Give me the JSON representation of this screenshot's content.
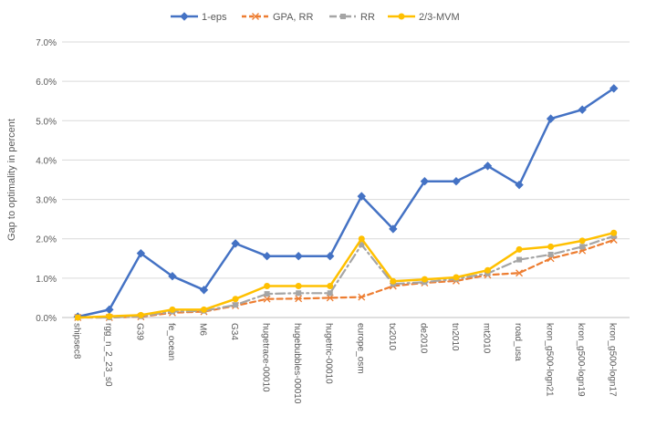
{
  "chart_data": {
    "type": "line",
    "title": "",
    "xlabel": "",
    "ylabel": "Gap to optimality in percent",
    "ylim": [
      0,
      7
    ],
    "yticks": [
      "0.0%",
      "1.0%",
      "2.0%",
      "3.0%",
      "4.0%",
      "5.0%",
      "6.0%",
      "7.0%"
    ],
    "grid": true,
    "legend_position": "top",
    "categories": [
      "shipsec8",
      "rgg_n_2_23_s0",
      "G39",
      "fe_ocean",
      "M6",
      "G34",
      "hugetrace-00010",
      "hugebubbles-00010",
      "hugetric-00010",
      "europe_osm",
      "tx2010",
      "de2010",
      "tn2010",
      "mt2010",
      "road_usa",
      "kron_g500-logn21",
      "kron_g500-logn19",
      "kron_g500-logn17"
    ],
    "series": [
      {
        "name": "1-eps",
        "color": "#4472C4",
        "marker": "diamond",
        "dash": "solid",
        "values": [
          0.02,
          0.2,
          1.63,
          1.05,
          0.7,
          1.88,
          1.56,
          1.56,
          1.56,
          3.08,
          2.25,
          3.46,
          3.46,
          3.85,
          3.37,
          5.05,
          5.28,
          5.82
        ]
      },
      {
        "name": "GPA, RR",
        "color": "#ED7D31",
        "marker": "x",
        "dash": "dash",
        "values": [
          0.0,
          0.0,
          0.02,
          0.12,
          0.15,
          0.3,
          0.47,
          0.48,
          0.5,
          0.52,
          0.8,
          0.88,
          0.93,
          1.08,
          1.13,
          1.5,
          1.7,
          1.97
        ]
      },
      {
        "name": "RR",
        "color": "#A5A5A5",
        "marker": "square",
        "dash": "dashdot",
        "values": [
          0.0,
          0.0,
          0.03,
          0.15,
          0.17,
          0.32,
          0.6,
          0.62,
          0.62,
          1.85,
          0.85,
          0.9,
          0.98,
          1.12,
          1.47,
          1.6,
          1.8,
          2.07
        ]
      },
      {
        "name": "2/3-MVM",
        "color": "#FFC000",
        "marker": "circle",
        "dash": "solid",
        "values": [
          0.0,
          0.03,
          0.06,
          0.2,
          0.2,
          0.47,
          0.8,
          0.8,
          0.8,
          2.0,
          0.92,
          0.97,
          1.02,
          1.2,
          1.73,
          1.8,
          1.95,
          2.15
        ]
      }
    ]
  }
}
